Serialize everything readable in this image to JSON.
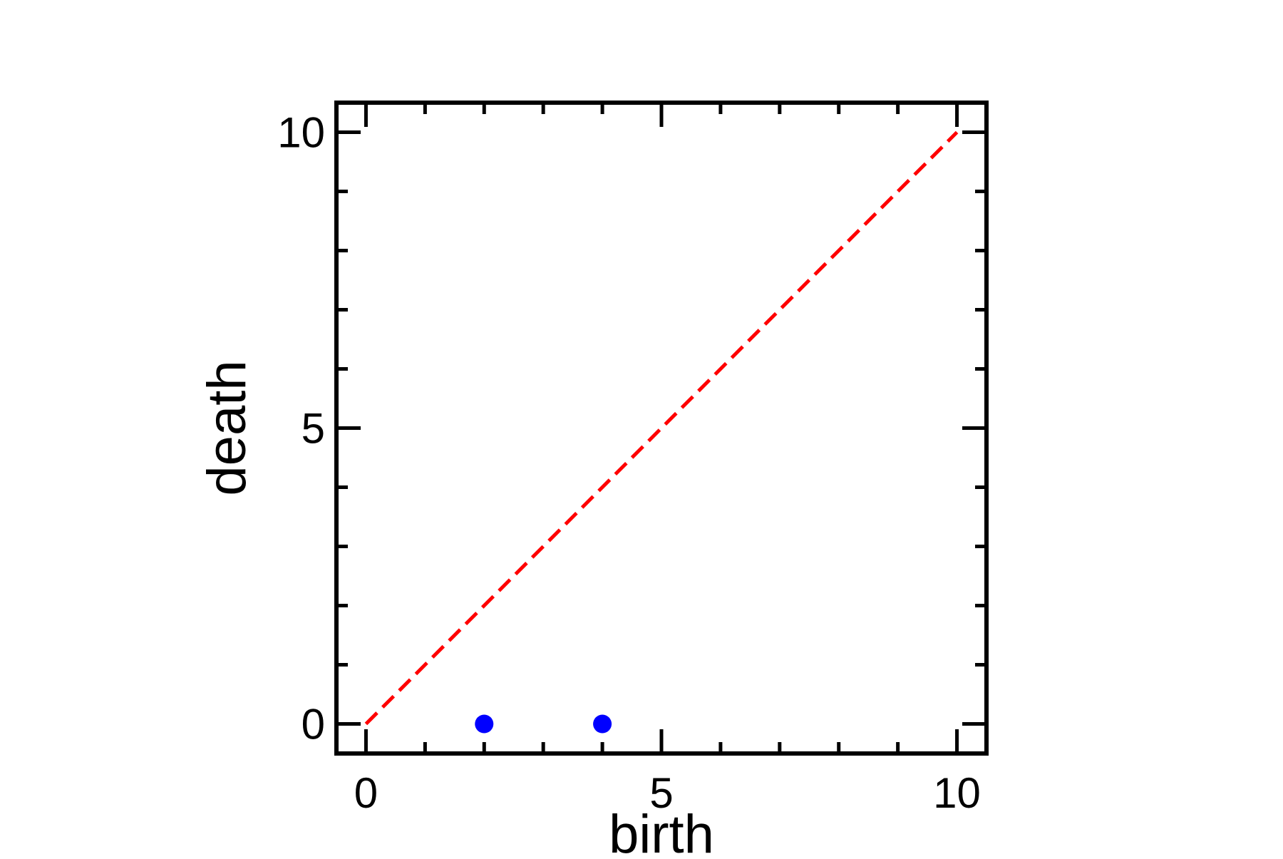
{
  "chart_data": {
    "type": "scatter",
    "title": "",
    "xlabel": "birth",
    "ylabel": "death",
    "xlim": [
      -0.5,
      10.5
    ],
    "ylim": [
      -0.5,
      10.5
    ],
    "xticks": [
      0,
      5,
      10
    ],
    "yticks": [
      0,
      5,
      10
    ],
    "xtick_labels": [
      "0",
      "5",
      "10"
    ],
    "ytick_labels": [
      "0",
      "5",
      "10"
    ],
    "minor_tick_step": 1,
    "grid": false,
    "series": [
      {
        "x": [
          2,
          4
        ],
        "y": [
          0,
          0
        ],
        "color": "#0000ff",
        "marker": "circle"
      }
    ],
    "reference_line": {
      "x": [
        0,
        10
      ],
      "y": [
        0,
        10
      ],
      "color": "#ff0000",
      "style": "dashed"
    }
  }
}
